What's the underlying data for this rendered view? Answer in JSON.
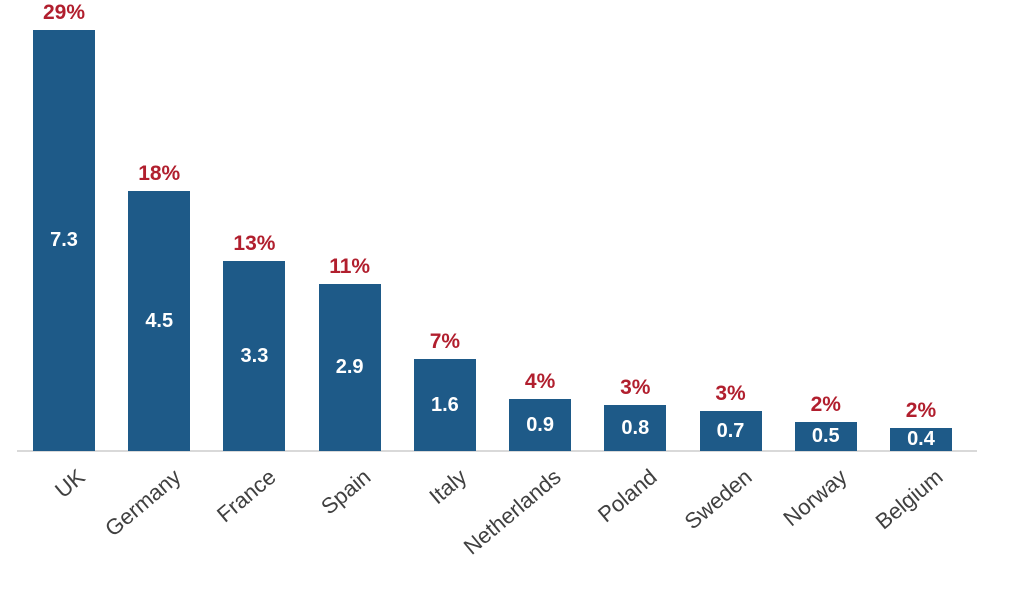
{
  "chart_data": {
    "type": "bar",
    "title": "",
    "xlabel": "",
    "ylabel": "",
    "categories": [
      "UK",
      "Germany",
      "France",
      "Spain",
      "Italy",
      "Netherlands",
      "Poland",
      "Sweden",
      "Norway",
      "Belgium"
    ],
    "values": [
      7.3,
      4.5,
      3.3,
      2.9,
      1.6,
      0.9,
      0.8,
      0.7,
      0.5,
      0.4
    ],
    "percent_labels": [
      "29%",
      "18%",
      "13%",
      "11%",
      "7%",
      "4%",
      "3%",
      "3%",
      "2%",
      "2%"
    ],
    "ylim": [
      0,
      7.8
    ],
    "grid": "off",
    "legend": "none",
    "colors": {
      "bar": "#1e5a88",
      "percent_label": "#b11f2e",
      "value_label": "#ffffff",
      "category_label": "#404040",
      "axis_line": "#d9d9d9",
      "background": "#ffffff"
    }
  }
}
